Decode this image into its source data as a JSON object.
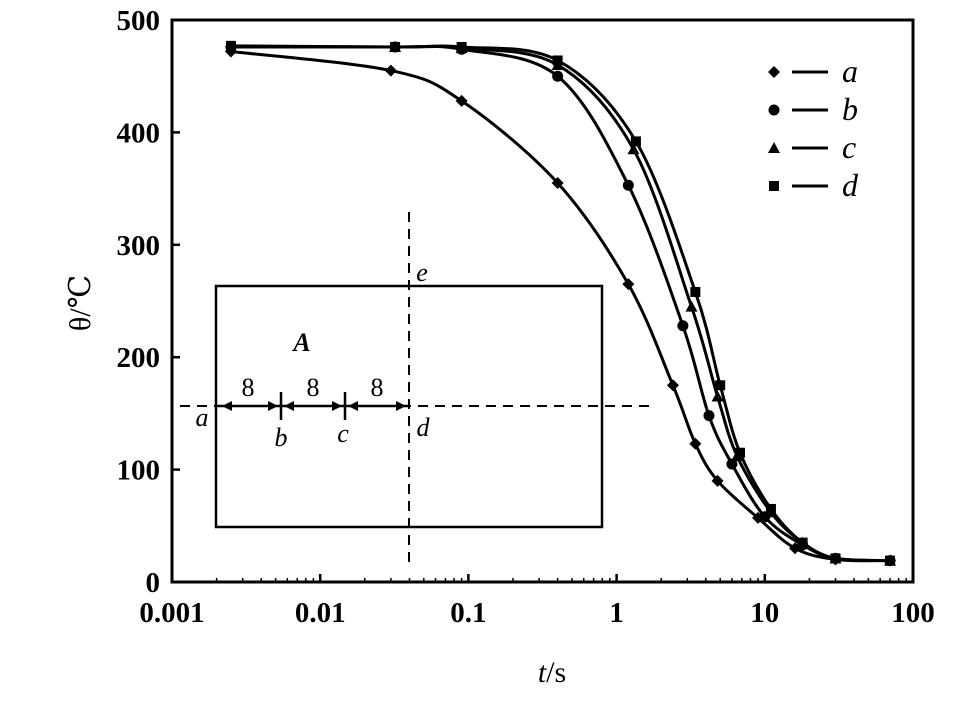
{
  "chart_data": {
    "type": "line",
    "x_scale": "log",
    "xlim": [
      0.001,
      100
    ],
    "ylim": [
      0,
      500
    ],
    "xlabel": {
      "var": "t",
      "unit": "/s"
    },
    "ylabel": "θ/℃",
    "x_ticks": [
      {
        "value": 0.001,
        "label": "0.001"
      },
      {
        "value": 0.01,
        "label": "0.01"
      },
      {
        "value": 0.1,
        "label": "0.1"
      },
      {
        "value": 1,
        "label": "1"
      },
      {
        "value": 10,
        "label": "10"
      },
      {
        "value": 100,
        "label": "100"
      }
    ],
    "y_ticks": [
      {
        "value": 0,
        "label": "0"
      },
      {
        "value": 100,
        "label": "100"
      },
      {
        "value": 200,
        "label": "200"
      },
      {
        "value": 300,
        "label": "300"
      },
      {
        "value": 400,
        "label": "400"
      },
      {
        "value": 500,
        "label": "500"
      }
    ],
    "grid": false,
    "legend_position": "top-right",
    "series": [
      {
        "name": "a",
        "marker": "diamond",
        "points": [
          [
            0.0025,
            472
          ],
          [
            0.03,
            455
          ],
          [
            0.09,
            428
          ],
          [
            0.4,
            355
          ],
          [
            1.2,
            265
          ],
          [
            2.4,
            175
          ],
          [
            3.4,
            123
          ],
          [
            4.8,
            90
          ],
          [
            9,
            57
          ],
          [
            16,
            30
          ],
          [
            30,
            20
          ],
          [
            70,
            19
          ]
        ]
      },
      {
        "name": "b",
        "marker": "circle",
        "points": [
          [
            0.0025,
            476
          ],
          [
            0.032,
            476
          ],
          [
            0.09,
            474
          ],
          [
            0.4,
            450
          ],
          [
            1.2,
            353
          ],
          [
            2.8,
            228
          ],
          [
            4.2,
            148
          ],
          [
            6,
            105
          ],
          [
            10,
            58
          ],
          [
            18,
            33
          ],
          [
            30,
            21
          ],
          [
            70,
            19
          ]
        ]
      },
      {
        "name": "c",
        "marker": "triangle",
        "points": [
          [
            0.0025,
            476
          ],
          [
            0.032,
            476
          ],
          [
            0.09,
            475
          ],
          [
            0.4,
            460
          ],
          [
            1.3,
            385
          ],
          [
            3.2,
            245
          ],
          [
            4.8,
            165
          ],
          [
            6.5,
            112
          ],
          [
            11,
            62
          ],
          [
            18,
            35
          ],
          [
            30,
            21
          ],
          [
            70,
            19
          ]
        ]
      },
      {
        "name": "d",
        "marker": "square",
        "points": [
          [
            0.0025,
            477
          ],
          [
            0.032,
            476
          ],
          [
            0.09,
            476
          ],
          [
            0.4,
            464
          ],
          [
            1.35,
            392
          ],
          [
            3.4,
            258
          ],
          [
            5,
            175
          ],
          [
            6.8,
            115
          ],
          [
            11,
            65
          ],
          [
            18,
            35
          ],
          [
            30,
            21
          ],
          [
            70,
            19
          ]
        ]
      }
    ]
  },
  "inset": {
    "region_label": "A",
    "point_labels": [
      "a",
      "b",
      "c",
      "d",
      "e"
    ],
    "dimension_labels": [
      "8",
      "8",
      "8"
    ]
  }
}
